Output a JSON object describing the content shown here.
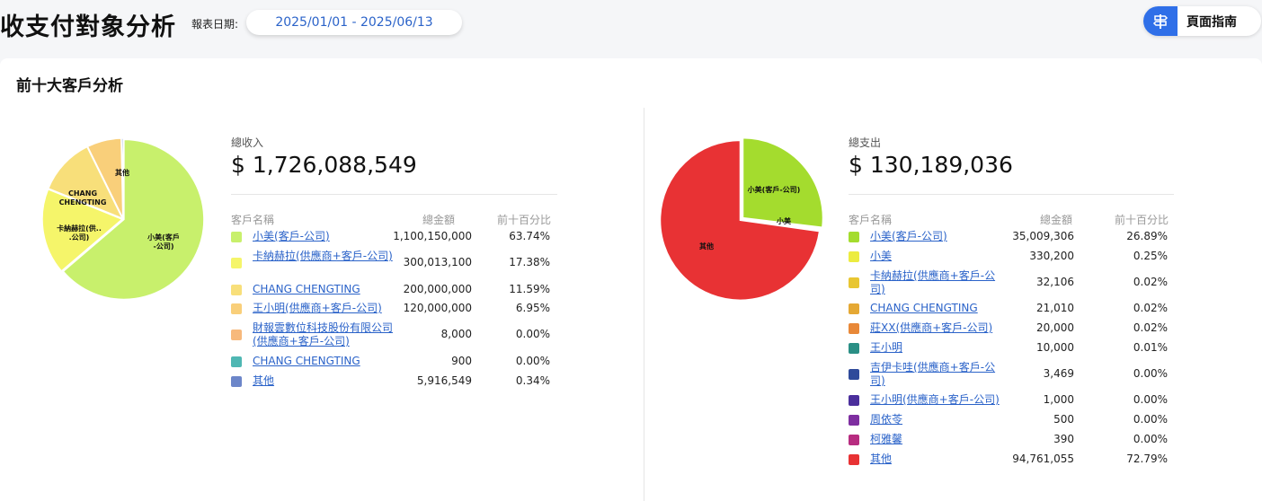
{
  "header": {
    "title": "收支付對象分析",
    "date_label": "報表日期:",
    "date_range": "2025/01/01 - 2025/06/13",
    "guide_label": "頁面指南",
    "guide_icon": "signpost-icon"
  },
  "section": {
    "title": "前十大客戶分析"
  },
  "income": {
    "summary_label": "總收入",
    "summary_value": "$ 1,726,088,549",
    "col_name": "客戶名稱",
    "col_amount": "總金額",
    "col_pct": "前十百分比",
    "rows": [
      {
        "name": "小美(客戶-公司)",
        "amount": "1,100,150,000",
        "pct": "63.74%",
        "color": "#c8f06c",
        "value": 63.74
      },
      {
        "name": "卡納赫拉(供應商+客戶-公司)",
        "amount": "300,013,100",
        "pct": "17.38%",
        "color": "#f5f56a",
        "value": 17.38
      },
      {
        "name": "CHANG CHENGTING",
        "amount": "200,000,000",
        "pct": "11.59%",
        "color": "#f8df7a",
        "value": 11.59
      },
      {
        "name": "王小明(供應商+客戶-公司)",
        "amount": "120,000,000",
        "pct": "6.95%",
        "color": "#f9cf7a",
        "value": 6.95
      },
      {
        "name": "財報雲數位科技股份有限公司(供應商+客戶-公司)",
        "amount": "8,000",
        "pct": "0.00%",
        "color": "#f7b97c",
        "value": 0.0
      },
      {
        "name": "CHANG CHENGTING",
        "amount": "900",
        "pct": "0.00%",
        "color": "#4fb7b3",
        "value": 0.0
      },
      {
        "name": "其他",
        "amount": "5,916,549",
        "pct": "0.34%",
        "color": "#6c86c9",
        "value": 0.34
      }
    ],
    "pie_labels": [
      "小美(客戶-公司)",
      "卡納赫拉(供...公司)",
      "CHANG CHENGTING",
      "其他"
    ]
  },
  "expense": {
    "summary_label": "總支出",
    "summary_value": "$ 130,189,036",
    "col_name": "客戶名稱",
    "col_amount": "總金額",
    "col_pct": "前十百分比",
    "rows": [
      {
        "name": "小美(客戶-公司)",
        "amount": "35,009,306",
        "pct": "26.89%",
        "color": "#a4dc2e",
        "value": 26.89
      },
      {
        "name": "小美",
        "amount": "330,200",
        "pct": "0.25%",
        "color": "#ecec40",
        "value": 0.25
      },
      {
        "name": "卡納赫拉(供應商+客戶-公司)",
        "amount": "32,106",
        "pct": "0.02%",
        "color": "#e8c632",
        "value": 0.02
      },
      {
        "name": "CHANG CHENGTING",
        "amount": "21,010",
        "pct": "0.02%",
        "color": "#e5a834",
        "value": 0.02
      },
      {
        "name": "莊XX(供應商+客戶-公司)",
        "amount": "20,000",
        "pct": "0.02%",
        "color": "#e88838",
        "value": 0.02
      },
      {
        "name": "王小明",
        "amount": "10,000",
        "pct": "0.01%",
        "color": "#2a8f85",
        "value": 0.01
      },
      {
        "name": "吉伊卡哇(供應商+客戶-公司)",
        "amount": "3,469",
        "pct": "0.00%",
        "color": "#2f4a9a",
        "value": 0.0
      },
      {
        "name": "王小明(供應商+客戶-公司)",
        "amount": "1,000",
        "pct": "0.00%",
        "color": "#4b2f9c",
        "value": 0.0
      },
      {
        "name": "周依苓",
        "amount": "500",
        "pct": "0.00%",
        "color": "#7e2ea0",
        "value": 0.0
      },
      {
        "name": "柯雅馨",
        "amount": "390",
        "pct": "0.00%",
        "color": "#b72c80",
        "value": 0.0
      },
      {
        "name": "其他",
        "amount": "94,761,055",
        "pct": "72.79%",
        "color": "#e83234",
        "value": 72.79
      }
    ],
    "pie_labels": [
      "小美(客戶-公司)",
      "小美",
      "其他"
    ]
  }
}
